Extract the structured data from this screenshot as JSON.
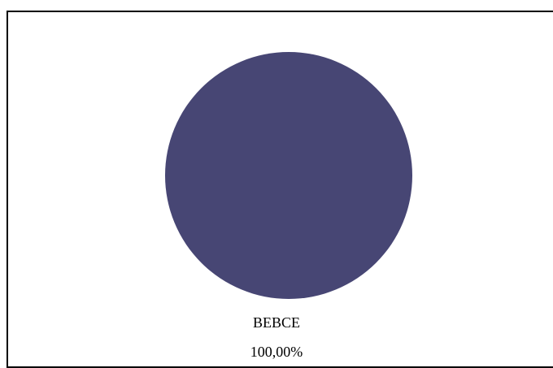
{
  "chart_data": {
    "type": "pie",
    "title": "",
    "categories": [
      "ВЕВСЕ"
    ],
    "values": [
      100
    ],
    "percent_labels": [
      "100,00%"
    ],
    "colors": [
      "#474674"
    ],
    "legend": "none"
  }
}
